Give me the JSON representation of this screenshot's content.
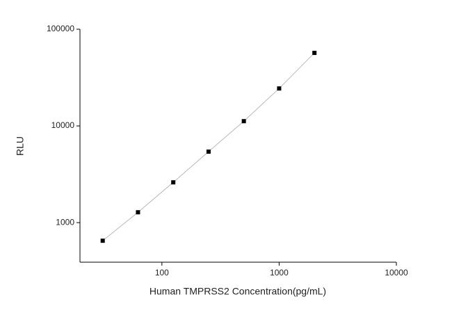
{
  "chart_data": {
    "type": "scatter",
    "x_label": "Human TMPRSS2 Concentration(pg/mL)",
    "y_label": "RLU",
    "x": [
      31.25,
      62.5,
      125,
      250,
      500,
      1000,
      2000
    ],
    "values": [
      650,
      1280,
      2610,
      5420,
      11200,
      24400,
      56900
    ],
    "color": "#000000",
    "line_color": "#b8b8b8",
    "xlog": true,
    "ylog": true,
    "xlim": [
      20,
      10000
    ],
    "ylim": [
      390,
      100000
    ],
    "xticks": [
      100,
      1000,
      10000
    ],
    "yticks": [
      1000,
      10000,
      100000
    ]
  }
}
